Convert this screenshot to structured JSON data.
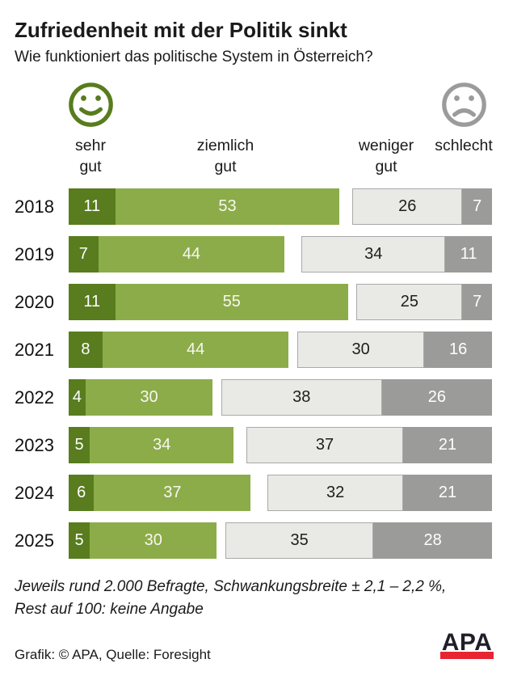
{
  "title": "Zufriedenheit mit der Politik sinkt",
  "subtitle": "Wie funktioniert das politische System in Österreich?",
  "legend": {
    "happy_icon": "smiley-happy-icon",
    "sad_icon": "smiley-sad-icon",
    "labels": [
      "sehr\ngut",
      "ziemlich\ngut",
      "weniger\ngut",
      "schlecht"
    ]
  },
  "colors": {
    "sehr_gut": "#587c1e",
    "ziemlich_gut": "#8cac4a",
    "weniger_gut": "#e9e9e6",
    "weniger_gut_border": "#a9a9a9",
    "schlecht": "#9b9b99",
    "smiley_happy": "#587c1e",
    "smiley_sad": "#9b9b9b",
    "logo_red": "#e62531",
    "text": "#1a1a1a"
  },
  "chart_data": {
    "type": "bar",
    "orientation": "horizontal",
    "stacked": true,
    "title": "Zufriedenheit mit der Politik sinkt",
    "subtitle": "Wie funktioniert das politische System in Österreich?",
    "categories": [
      "2018",
      "2019",
      "2020",
      "2021",
      "2022",
      "2023",
      "2024",
      "2025"
    ],
    "series": [
      {
        "key": "sehr-gut",
        "name": "sehr gut",
        "color": "#587c1e",
        "values": [
          11,
          7,
          11,
          8,
          4,
          5,
          6,
          5
        ]
      },
      {
        "key": "ziemlich-gut",
        "name": "ziemlich gut",
        "color": "#8cac4a",
        "values": [
          53,
          44,
          55,
          44,
          30,
          34,
          37,
          30
        ]
      },
      {
        "key": "weniger-gut",
        "name": "weniger gut",
        "color": "#e9e9e6",
        "values": [
          26,
          34,
          25,
          30,
          38,
          37,
          32,
          35
        ]
      },
      {
        "key": "schlecht",
        "name": "schlecht",
        "color": "#9b9b99",
        "values": [
          7,
          11,
          7,
          16,
          26,
          21,
          21,
          28
        ]
      }
    ],
    "value_unit": "percent",
    "xlim": [
      0,
      100
    ],
    "layout_note": "green segments left-aligned, gray segments right-aligned, middle gap = keine Angabe (rest to 100)",
    "grid": false,
    "legend_position": "top"
  },
  "footnote": {
    "line1": "Jeweils rund 2.000 Befragte, Schwankungsbreite ± 2,1 – 2,2 %,",
    "line2": "Rest auf 100: keine Angabe"
  },
  "credit": "Grafik: © APA, Quelle: Foresight",
  "logo_text": "APA"
}
